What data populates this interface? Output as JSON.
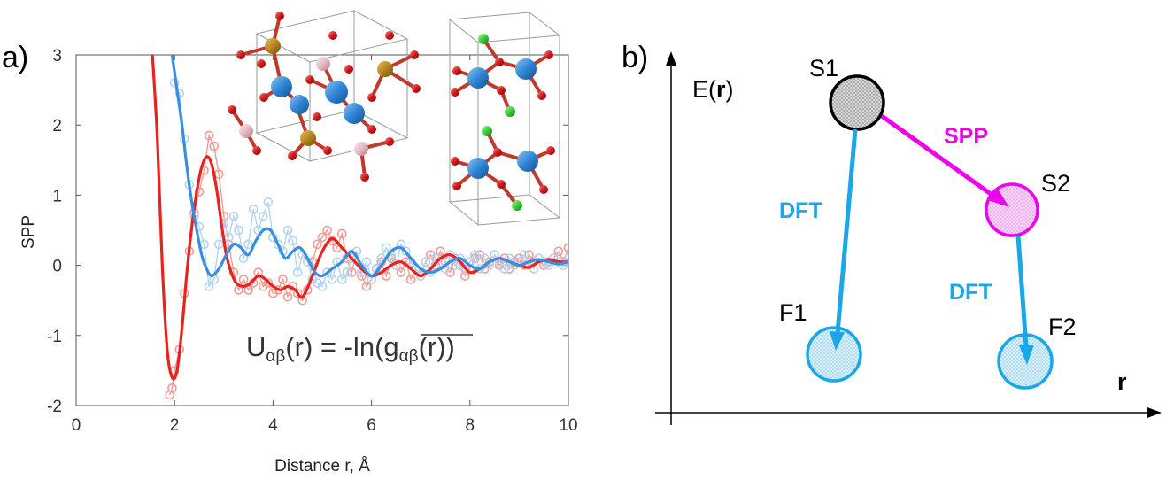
{
  "panels": {
    "a": {
      "label": "a)"
    },
    "b": {
      "label": "b)"
    }
  },
  "chart_data": {
    "type": "line",
    "title": "",
    "xlabel": "Distance r, Å",
    "ylabel": "SPP",
    "xlim": [
      0,
      10
    ],
    "ylim": [
      -2,
      3
    ],
    "xticks": [
      "0",
      "2",
      "4",
      "6",
      "8",
      "10"
    ],
    "yticks": [
      "-2",
      "-1",
      "0",
      "1",
      "2",
      "3"
    ],
    "annotation": {
      "left": "U",
      "sub": "αβ",
      "mid": "(r) = -ln(",
      "g": "g",
      "right": "(r))"
    },
    "series": [
      {
        "name": "red-smooth",
        "color": "#e8231d",
        "style": "line",
        "x": [
          1.55,
          1.65,
          1.75,
          1.85,
          1.95,
          2.05,
          2.15,
          2.25,
          2.35,
          2.45,
          2.55,
          2.65,
          2.75,
          2.85,
          2.95,
          3.05,
          3.15,
          3.25,
          3.4,
          3.55,
          3.7,
          3.85,
          4.0,
          4.15,
          4.3,
          4.45,
          4.6,
          4.8,
          5.0,
          5.2,
          5.4,
          5.6,
          5.8,
          6.0,
          6.2,
          6.4,
          6.6,
          6.8,
          7.0,
          7.2,
          7.4,
          7.6,
          7.8,
          8.0,
          8.2,
          8.4,
          8.6,
          8.8,
          9.0,
          9.2,
          9.4,
          9.6,
          9.8,
          10.0
        ],
        "y": [
          3.0,
          1.8,
          0.0,
          -1.2,
          -1.6,
          -1.5,
          -0.9,
          -0.1,
          0.55,
          1.05,
          1.4,
          1.55,
          1.45,
          1.1,
          0.6,
          0.15,
          -0.1,
          -0.25,
          -0.3,
          -0.25,
          -0.15,
          -0.2,
          -0.3,
          -0.35,
          -0.3,
          -0.35,
          -0.45,
          -0.15,
          0.2,
          0.38,
          0.25,
          0.1,
          -0.05,
          -0.15,
          -0.1,
          0.0,
          0.05,
          -0.05,
          -0.15,
          -0.05,
          0.1,
          0.15,
          0.05,
          -0.1,
          -0.05,
          0.05,
          0.1,
          0.05,
          0.0,
          -0.03,
          0.05,
          0.08,
          0.05,
          0.05
        ]
      },
      {
        "name": "blue-smooth",
        "color": "#3a8ee0",
        "style": "line",
        "x": [
          1.95,
          2.05,
          2.15,
          2.25,
          2.35,
          2.45,
          2.55,
          2.65,
          2.75,
          2.9,
          3.05,
          3.2,
          3.35,
          3.5,
          3.65,
          3.8,
          3.95,
          4.1,
          4.25,
          4.4,
          4.55,
          4.7,
          4.85,
          5.0,
          5.2,
          5.4,
          5.6,
          5.8,
          6.0,
          6.2,
          6.4,
          6.6,
          6.8,
          7.0,
          7.2,
          7.4,
          7.6,
          7.8,
          8.0,
          8.2,
          8.4,
          8.6,
          8.8,
          9.0,
          9.2,
          9.4,
          9.6,
          9.8,
          10.0
        ],
        "y": [
          3.0,
          2.5,
          2.0,
          1.4,
          0.9,
          0.5,
          0.15,
          -0.05,
          -0.15,
          -0.05,
          0.15,
          0.3,
          0.25,
          0.15,
          0.35,
          0.5,
          0.5,
          0.3,
          0.1,
          0.2,
          0.25,
          0.1,
          -0.1,
          -0.15,
          -0.05,
          0.05,
          0.2,
          0.0,
          -0.15,
          0.0,
          0.2,
          0.25,
          0.1,
          -0.05,
          -0.1,
          -0.05,
          0.05,
          0.1,
          0.0,
          -0.05,
          0.05,
          0.1,
          0.05,
          0.0,
          0.05,
          0.08,
          0.05,
          0.02,
          0.05
        ]
      },
      {
        "name": "red-raw",
        "color": "#f39b96",
        "style": "markers",
        "x": [
          1.9,
          1.95,
          2.0,
          2.1,
          2.2,
          2.3,
          2.4,
          2.5,
          2.6,
          2.7,
          2.8,
          2.9,
          3.0,
          3.1,
          3.2,
          3.3,
          3.4,
          3.5,
          3.6,
          3.7,
          3.8,
          3.9,
          4.0,
          4.1,
          4.2,
          4.3,
          4.4,
          4.5,
          4.6,
          4.7,
          4.8,
          4.9,
          5.0,
          5.1,
          5.2,
          5.3,
          5.4,
          5.5,
          5.6,
          5.7,
          5.8,
          5.9,
          6.0,
          6.1,
          6.2,
          6.3,
          6.4,
          6.5,
          6.6,
          6.7,
          6.8,
          6.9,
          7.0,
          7.1,
          7.2,
          7.3,
          7.4,
          7.5,
          7.6,
          7.7,
          7.8,
          7.9,
          8.0,
          8.1,
          8.2,
          8.3,
          8.4,
          8.5,
          8.6,
          8.7,
          8.8,
          8.9,
          9.0,
          9.1,
          9.2,
          9.3,
          9.4,
          9.5,
          9.6,
          9.7,
          9.8,
          9.9,
          10.0
        ],
        "y": [
          -1.85,
          -1.75,
          -1.5,
          -1.2,
          -0.4,
          0.2,
          0.75,
          1.05,
          1.35,
          1.85,
          1.7,
          1.3,
          0.7,
          0.3,
          -0.1,
          -0.35,
          -0.2,
          -0.35,
          -0.25,
          -0.1,
          -0.3,
          -0.25,
          -0.4,
          -0.35,
          -0.2,
          -0.45,
          -0.3,
          -0.4,
          -0.5,
          -0.35,
          0.05,
          0.3,
          0.4,
          0.5,
          0.35,
          0.25,
          0.45,
          0.1,
          -0.1,
          0.2,
          -0.15,
          -0.3,
          -0.2,
          -0.05,
          0.05,
          -0.15,
          0.1,
          0.0,
          -0.1,
          0.05,
          -0.2,
          -0.05,
          -0.15,
          0.05,
          0.15,
          0.0,
          0.2,
          0.05,
          -0.1,
          0.1,
          0.0,
          -0.15,
          -0.05,
          0.1,
          0.15,
          -0.05,
          0.05,
          0.15,
          0.0,
          0.1,
          -0.05,
          0.05,
          0.1,
          0.0,
          0.15,
          0.05,
          0.1,
          0.0,
          0.05,
          0.1,
          0.2,
          0.05,
          0.25
        ]
      },
      {
        "name": "blue-raw",
        "color": "#b3d4f0",
        "style": "markers",
        "x": [
          2.0,
          2.1,
          2.2,
          2.3,
          2.4,
          2.5,
          2.6,
          2.7,
          2.8,
          2.9,
          3.0,
          3.1,
          3.2,
          3.3,
          3.4,
          3.5,
          3.6,
          3.7,
          3.8,
          3.9,
          4.0,
          4.1,
          4.2,
          4.3,
          4.4,
          4.5,
          4.6,
          4.7,
          4.8,
          4.9,
          5.0,
          5.1,
          5.2,
          5.3,
          5.4,
          5.5,
          5.6,
          5.7,
          5.8,
          5.9,
          6.0,
          6.1,
          6.2,
          6.3,
          6.4,
          6.5,
          6.6,
          6.7,
          6.8,
          6.9,
          7.0,
          7.1,
          7.2,
          7.3,
          7.4,
          7.5,
          7.6,
          7.7,
          7.8,
          7.9,
          8.0,
          8.1,
          8.2,
          8.3,
          8.4,
          8.5,
          8.6,
          8.7,
          8.8,
          8.9,
          9.0,
          9.1,
          9.2,
          9.3,
          9.4,
          9.5,
          9.6,
          9.7,
          9.8,
          9.9,
          10.0
        ],
        "y": [
          2.6,
          2.45,
          1.8,
          1.15,
          0.7,
          0.55,
          0.3,
          -0.3,
          -0.2,
          0.3,
          0.6,
          0.4,
          0.7,
          0.5,
          0.1,
          0.3,
          0.8,
          0.5,
          0.7,
          0.9,
          0.4,
          0.3,
          0.2,
          0.5,
          0.35,
          -0.1,
          0.15,
          0.05,
          -0.2,
          -0.25,
          -0.3,
          -0.1,
          -0.2,
          0.05,
          -0.2,
          -0.1,
          0.1,
          0.2,
          -0.1,
          0.05,
          -0.2,
          -0.05,
          0.1,
          0.25,
          0.15,
          0.0,
          0.3,
          0.2,
          0.05,
          -0.05,
          -0.15,
          0.05,
          -0.1,
          0.1,
          0.05,
          -0.05,
          0.15,
          0.0,
          0.1,
          -0.05,
          0.05,
          0.15,
          -0.05,
          0.1,
          0.0,
          0.15,
          0.05,
          -0.05,
          0.1,
          0.0,
          0.05,
          0.15,
          0.0,
          -0.05,
          0.1,
          0.05,
          0.0,
          0.1,
          0.05,
          0.0,
          0.1
        ]
      }
    ]
  },
  "diagram": {
    "y_axis_label": "E(",
    "y_axis_bold": "r",
    "y_axis_close": ")",
    "x_axis_label": "r",
    "nodes": [
      {
        "id": "S1",
        "label": "S1",
        "color": "#000000",
        "fill": "#c8c8c8"
      },
      {
        "id": "S2",
        "label": "S2",
        "color": "#ee00ee",
        "fill": "#f4c6f4"
      },
      {
        "id": "F1",
        "label": "F1",
        "color": "#1aa7e8",
        "fill": "#bfe4f5"
      },
      {
        "id": "F2",
        "label": "F2",
        "color": "#1aa7e8",
        "fill": "#bfe4f5"
      }
    ],
    "arrows": [
      {
        "from": "S1",
        "to": "S2",
        "label": "SPP",
        "color": "#ee00ee"
      },
      {
        "from": "S1",
        "to": "F1",
        "label": "DFT",
        "color": "#1aa7e8"
      },
      {
        "from": "S2",
        "to": "F2",
        "label": "DFT",
        "color": "#1aa7e8"
      }
    ]
  },
  "colors": {
    "oxygen": "#d11a1a",
    "cobalt": "#2f85d6",
    "phosphorus": "#b8861e",
    "pink": "#e7b9c2",
    "chlorine": "#3dcc3d"
  }
}
